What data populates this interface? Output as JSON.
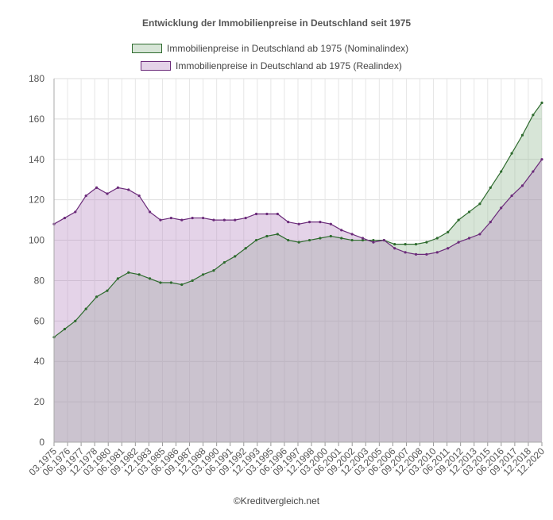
{
  "chart_data": {
    "type": "area",
    "title": "Entwicklung der Immobilienpreise in Deutschland seit 1975",
    "credit": "©Kreditvergleich.net",
    "ylim": [
      0,
      180
    ],
    "yticks": [
      0,
      20,
      40,
      60,
      80,
      100,
      120,
      140,
      160,
      180
    ],
    "grid": true,
    "legend_position": "top",
    "xticks": [
      "03.1975",
      "06.1976",
      "09.1977",
      "12.1978",
      "03.1980",
      "06.1981",
      "09.1982",
      "12.1983",
      "03.1985",
      "06.1986",
      "09.1987",
      "12.1988",
      "03.1990",
      "06.1991",
      "09.1992",
      "12.1993",
      "03.1995",
      "06.1996",
      "09.1997",
      "12.1998",
      "03.2000",
      "06.2001",
      "09.2002",
      "12.2003",
      "03.2005",
      "06.2006",
      "09.2007",
      "12.2008",
      "03.2010",
      "06.2011",
      "09.2012",
      "12.2013",
      "03.2015",
      "06.2016",
      "09.2017",
      "12.2018",
      "12.2020"
    ],
    "x_units": "years",
    "series": [
      {
        "name": "Immobilienpreise in Deutschland ab 1975 (Nominalindex)",
        "color": "#2e6b2e",
        "fill": "rgba(140,180,140,0.35)",
        "points": [
          [
            1975.0,
            52
          ],
          [
            1976.0,
            56
          ],
          [
            1977.0,
            60
          ],
          [
            1978.0,
            66
          ],
          [
            1979.0,
            72
          ],
          [
            1980.0,
            75
          ],
          [
            1981.0,
            81
          ],
          [
            1982.0,
            84
          ],
          [
            1983.0,
            83
          ],
          [
            1984.0,
            81
          ],
          [
            1985.0,
            79
          ],
          [
            1986.0,
            79
          ],
          [
            1987.0,
            78
          ],
          [
            1988.0,
            80
          ],
          [
            1989.0,
            83
          ],
          [
            1990.0,
            85
          ],
          [
            1991.0,
            89
          ],
          [
            1992.0,
            92
          ],
          [
            1993.0,
            96
          ],
          [
            1994.0,
            100
          ],
          [
            1995.0,
            102
          ],
          [
            1996.0,
            103
          ],
          [
            1997.0,
            100
          ],
          [
            1998.0,
            99
          ],
          [
            1999.0,
            100
          ],
          [
            2000.0,
            101
          ],
          [
            2001.0,
            102
          ],
          [
            2002.0,
            101
          ],
          [
            2003.0,
            100
          ],
          [
            2004.0,
            100
          ],
          [
            2005.0,
            100
          ],
          [
            2006.0,
            100
          ],
          [
            2007.0,
            98
          ],
          [
            2008.0,
            98
          ],
          [
            2009.0,
            98
          ],
          [
            2010.0,
            99
          ],
          [
            2011.0,
            101
          ],
          [
            2012.0,
            104
          ],
          [
            2013.0,
            110
          ],
          [
            2014.0,
            114
          ],
          [
            2015.0,
            118
          ],
          [
            2016.0,
            126
          ],
          [
            2017.0,
            134
          ],
          [
            2018.0,
            143
          ],
          [
            2019.0,
            152
          ],
          [
            2020.0,
            162
          ],
          [
            2020.83,
            168
          ]
        ]
      },
      {
        "name": "Immobilienpreise in Deutschland ab 1975 (Realindex)",
        "color": "#6b2b7a",
        "fill": "rgba(185,140,195,0.38)",
        "points": [
          [
            1975.0,
            108
          ],
          [
            1976.0,
            111
          ],
          [
            1977.0,
            114
          ],
          [
            1978.0,
            122
          ],
          [
            1979.0,
            126
          ],
          [
            1980.0,
            123
          ],
          [
            1981.0,
            126
          ],
          [
            1982.0,
            125
          ],
          [
            1983.0,
            122
          ],
          [
            1984.0,
            114
          ],
          [
            1985.0,
            110
          ],
          [
            1986.0,
            111
          ],
          [
            1987.0,
            110
          ],
          [
            1988.0,
            111
          ],
          [
            1989.0,
            111
          ],
          [
            1990.0,
            110
          ],
          [
            1991.0,
            110
          ],
          [
            1992.0,
            110
          ],
          [
            1993.0,
            111
          ],
          [
            1994.0,
            113
          ],
          [
            1995.0,
            113
          ],
          [
            1996.0,
            113
          ],
          [
            1997.0,
            109
          ],
          [
            1998.0,
            108
          ],
          [
            1999.0,
            109
          ],
          [
            2000.0,
            109
          ],
          [
            2001.0,
            108
          ],
          [
            2002.0,
            105
          ],
          [
            2003.0,
            103
          ],
          [
            2004.0,
            101
          ],
          [
            2005.0,
            99
          ],
          [
            2006.0,
            100
          ],
          [
            2007.0,
            96
          ],
          [
            2008.0,
            94
          ],
          [
            2009.0,
            93
          ],
          [
            2010.0,
            93
          ],
          [
            2011.0,
            94
          ],
          [
            2012.0,
            96
          ],
          [
            2013.0,
            99
          ],
          [
            2014.0,
            101
          ],
          [
            2015.0,
            103
          ],
          [
            2016.0,
            109
          ],
          [
            2017.0,
            116
          ],
          [
            2018.0,
            122
          ],
          [
            2019.0,
            127
          ],
          [
            2020.0,
            134
          ],
          [
            2020.83,
            140
          ]
        ]
      }
    ]
  }
}
